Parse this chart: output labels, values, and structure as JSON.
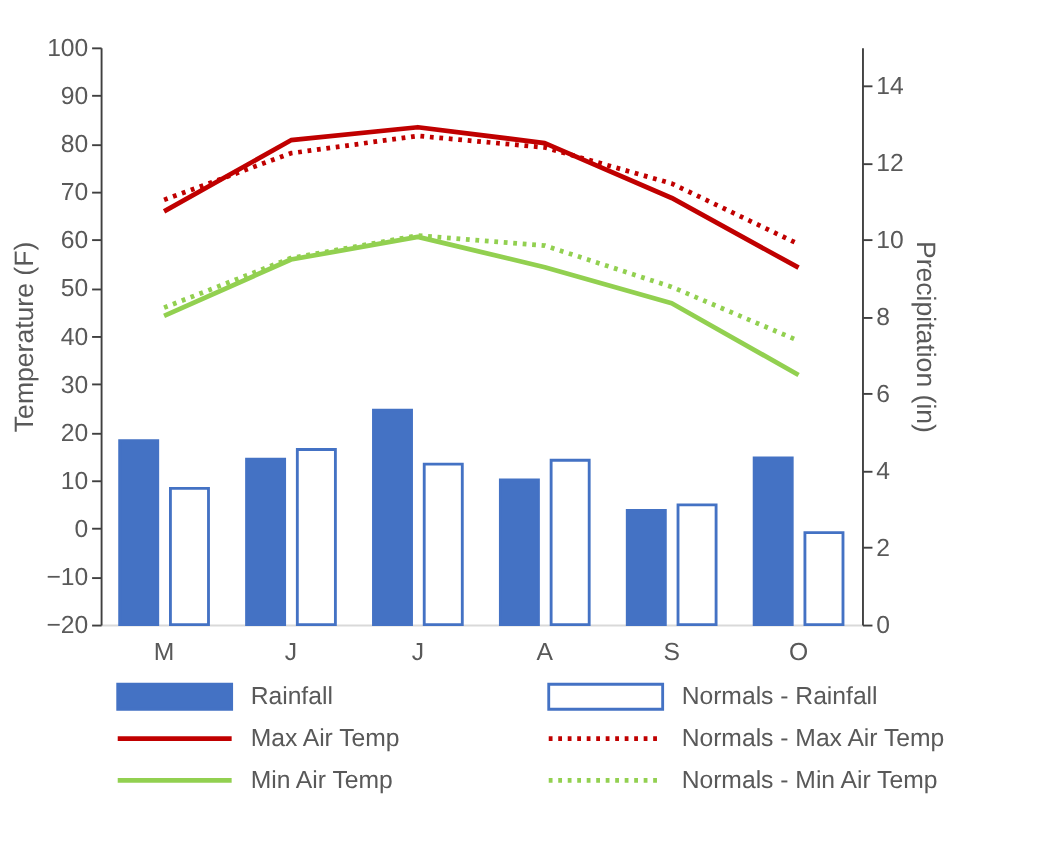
{
  "chart_data": {
    "type": "bar",
    "categories": [
      "M",
      "J",
      "J",
      "A",
      "S",
      "O"
    ],
    "ylabel": "Temperature (F)",
    "y2label": "Precipitation (in)",
    "ylim": [
      -20,
      100
    ],
    "yticks": [
      -20,
      -10,
      0,
      10,
      20,
      30,
      40,
      50,
      60,
      70,
      80,
      90,
      100
    ],
    "y2lim": [
      0,
      15
    ],
    "y2ticks": [
      0,
      2,
      4,
      6,
      8,
      10,
      12,
      14
    ],
    "legend": "bottom",
    "series": [
      {
        "name": "Rainfall",
        "axis": "y2",
        "color": "#4472c4",
        "values": [
          4.78,
          4.3,
          5.57,
          3.76,
          2.97,
          4.33
        ]
      },
      {
        "name": "Normals - Rainfall",
        "axis": "y2",
        "color": "#4472c4",
        "line_style": "solid",
        "values": [
          3.54,
          4.55,
          4.17,
          4.27,
          3.11,
          2.39
        ]
      },
      {
        "name": "Max Air Temp",
        "type": "line",
        "color": "#c00000",
        "line_style": "solid",
        "values": [
          65.9,
          80.7,
          83.4,
          80.1,
          68.7,
          54.2
        ]
      },
      {
        "name": "Normals - Max Air Temp",
        "type": "line",
        "color": "#c00000",
        "line_style": "dotted",
        "values": [
          68.3,
          78.0,
          81.6,
          79.2,
          71.7,
          59.1
        ]
      },
      {
        "name": "Min Air Temp",
        "type": "line",
        "color": "#92d050",
        "line_style": "solid",
        "values": [
          44.2,
          55.9,
          60.6,
          54.3,
          46.8,
          31.9
        ]
      },
      {
        "name": "Normals - Min Air Temp",
        "type": "line",
        "color": "#92d050",
        "line_style": "dotted",
        "values": [
          45.9,
          56.2,
          60.9,
          58.8,
          50.2,
          39.0
        ]
      }
    ]
  }
}
